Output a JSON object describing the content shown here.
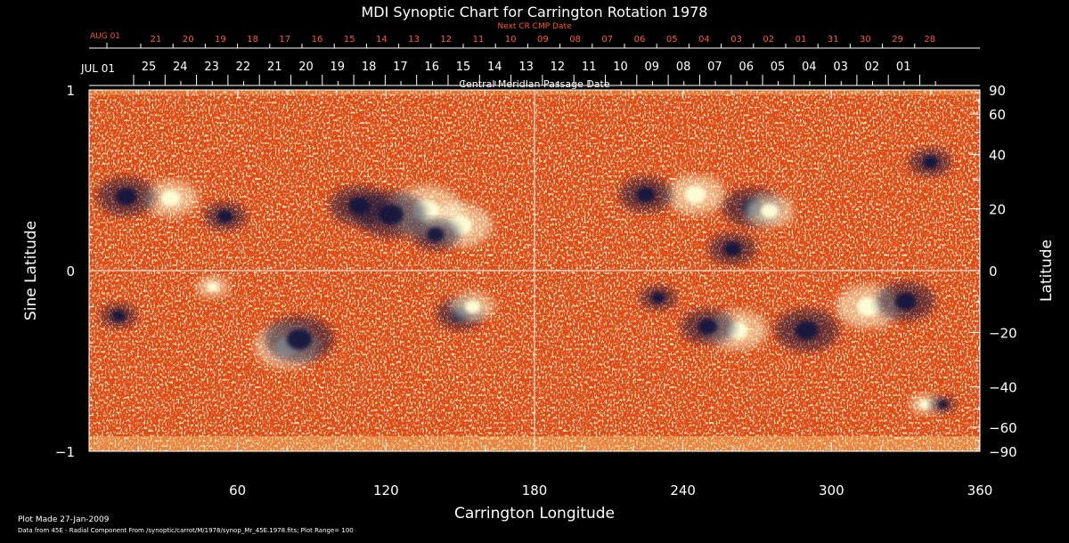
{
  "chart_data": {
    "type": "heatmap",
    "title": "MDI Synoptic Chart for Carrington Rotation 1978",
    "xlabel": "Carrington Longitude",
    "ylabel_left": "Sine Latitude",
    "ylabel_right": "Latitude",
    "xlim": [
      0,
      360
    ],
    "x_ticks": [
      "60",
      "120",
      "180",
      "240",
      "300",
      "360"
    ],
    "y_left_ticks": [
      "1",
      "0",
      "−1"
    ],
    "y_right_ticks": [
      "90",
      "60",
      "40",
      "20",
      "0",
      "−20",
      "−40",
      "−60",
      "−90"
    ],
    "y_right_tick_values": [
      90,
      60,
      40,
      20,
      0,
      -20,
      -40,
      -60,
      -90
    ],
    "reference_lines": {
      "longitude": 180,
      "sine_latitude": 0
    },
    "next_cr_axis": {
      "label": "Next CR CMP Date",
      "start_label": "AUG 01",
      "days": [
        "21",
        "20",
        "19",
        "18",
        "17",
        "16",
        "15",
        "14",
        "13",
        "12",
        "11",
        "10",
        "09",
        "08",
        "07",
        "06",
        "05",
        "04",
        "03",
        "02",
        "01",
        "31",
        "30",
        "29",
        "28"
      ]
    },
    "cmp_axis": {
      "label": "Central Meridian Passage Date",
      "start_label": "JUL 01",
      "days": [
        "25",
        "24",
        "23",
        "22",
        "21",
        "20",
        "19",
        "18",
        "17",
        "16",
        "15",
        "14",
        "13",
        "12",
        "11",
        "10",
        "09",
        "08",
        "07",
        "06",
        "05",
        "04",
        "03",
        "02",
        "01"
      ]
    },
    "colors": {
      "background": "#000000",
      "field_base": "#e8480f",
      "positive_polarity": "#ffffd8",
      "negative_polarity": "#14143c",
      "next_cr_text": "#ff5a1e",
      "axes": "#ffffff"
    },
    "active_regions": [
      {
        "polarity": "white",
        "lon": 80,
        "sinlat": -0.42,
        "size": 1.2
      },
      {
        "polarity": "black",
        "lon": 85,
        "sinlat": -0.38,
        "size": 1.3
      },
      {
        "polarity": "white",
        "lon": 136,
        "sinlat": 0.33,
        "size": 1.4
      },
      {
        "polarity": "black",
        "lon": 122,
        "sinlat": 0.31,
        "size": 1.3
      },
      {
        "polarity": "black",
        "lon": 109,
        "sinlat": 0.36,
        "size": 1.1
      },
      {
        "polarity": "white",
        "lon": 150,
        "sinlat": 0.25,
        "size": 1.2
      },
      {
        "polarity": "black",
        "lon": 140,
        "sinlat": 0.2,
        "size": 0.9
      },
      {
        "polarity": "white",
        "lon": 33,
        "sinlat": 0.4,
        "size": 1.0
      },
      {
        "polarity": "black",
        "lon": 15,
        "sinlat": 0.41,
        "size": 1.1
      },
      {
        "polarity": "black",
        "lon": 55,
        "sinlat": 0.3,
        "size": 0.8
      },
      {
        "polarity": "white",
        "lon": 245,
        "sinlat": 0.42,
        "size": 1.1
      },
      {
        "polarity": "black",
        "lon": 225,
        "sinlat": 0.42,
        "size": 1.0
      },
      {
        "polarity": "black",
        "lon": 268,
        "sinlat": 0.35,
        "size": 1.1
      },
      {
        "polarity": "white",
        "lon": 275,
        "sinlat": 0.33,
        "size": 0.9
      },
      {
        "polarity": "black",
        "lon": 260,
        "sinlat": 0.12,
        "size": 0.9
      },
      {
        "polarity": "white",
        "lon": 262,
        "sinlat": -0.33,
        "size": 1.1
      },
      {
        "polarity": "black",
        "lon": 250,
        "sinlat": -0.31,
        "size": 1.0
      },
      {
        "polarity": "black",
        "lon": 290,
        "sinlat": -0.33,
        "size": 1.2
      },
      {
        "polarity": "white",
        "lon": 315,
        "sinlat": -0.2,
        "size": 1.2
      },
      {
        "polarity": "black",
        "lon": 330,
        "sinlat": -0.17,
        "size": 1.1
      },
      {
        "polarity": "white",
        "lon": 338,
        "sinlat": -0.74,
        "size": 0.6
      },
      {
        "polarity": "black",
        "lon": 345,
        "sinlat": -0.74,
        "size": 0.5
      },
      {
        "polarity": "black",
        "lon": 150,
        "sinlat": -0.24,
        "size": 0.9
      },
      {
        "polarity": "white",
        "lon": 155,
        "sinlat": -0.2,
        "size": 0.8
      },
      {
        "polarity": "black",
        "lon": 12,
        "sinlat": -0.25,
        "size": 0.7
      },
      {
        "polarity": "white",
        "lon": 50,
        "sinlat": -0.09,
        "size": 0.6
      },
      {
        "polarity": "black",
        "lon": 340,
        "sinlat": 0.6,
        "size": 0.8
      },
      {
        "polarity": "black",
        "lon": 230,
        "sinlat": -0.15,
        "size": 0.7
      }
    ]
  },
  "footer": {
    "line1": "Plot Made 27-Jan-2009",
    "line2": "Data from 45E - Radial Component From /synoptic/carrot/M/1978/synop_Mr_45E.1978.fits; Plot Range=  100"
  }
}
